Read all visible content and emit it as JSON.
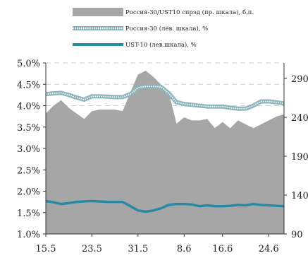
{
  "chart_data": {
    "type": "area",
    "x": [
      "15.5",
      "16.5",
      "17.5",
      "18.5",
      "19.5",
      "22.5",
      "23.5",
      "24.5",
      "25.5",
      "26.5",
      "29.5",
      "30.5",
      "31.5",
      "1.6",
      "2.6",
      "5.6",
      "6.6",
      "7.6",
      "8.6",
      "9.6",
      "13.6",
      "14.6",
      "15.6",
      "16.6",
      "19.6",
      "20.6",
      "21.6",
      "22.6",
      "23.6",
      "24.6",
      "25.6",
      "26.6"
    ],
    "xticks": [
      "15.5",
      "23.5",
      "31.5",
      "8.6",
      "16.6",
      "24.6"
    ],
    "series": [
      {
        "name": "Россия-30/UST10 спрэд (пр. шкала), б.п.",
        "axis": "right",
        "kind": "area",
        "color": "#a6a6a6",
        "values": [
          245,
          255,
          262,
          252,
          245,
          238,
          248,
          250,
          250,
          250,
          248,
          272,
          295,
          300,
          292,
          282,
          272,
          232,
          240,
          236,
          236,
          238,
          226,
          234,
          226,
          236,
          231,
          226,
          231,
          236,
          241,
          244
        ]
      },
      {
        "name": "Россия-30 (лев. шкала), %",
        "axis": "left",
        "kind": "line",
        "color": "#8fb5bd",
        "values": [
          4.27,
          4.29,
          4.3,
          4.25,
          4.19,
          4.14,
          4.22,
          4.22,
          4.21,
          4.2,
          4.2,
          4.27,
          4.42,
          4.45,
          4.45,
          4.44,
          4.29,
          4.08,
          4.04,
          4.02,
          4.0,
          3.98,
          3.98,
          3.98,
          3.95,
          3.93,
          3.93,
          4.0,
          4.1,
          4.1,
          4.08,
          4.05
        ]
      },
      {
        "name": "UST-10 (лев.шкала), %",
        "axis": "left",
        "kind": "line",
        "color": "#2a8aa6",
        "values": [
          1.77,
          1.74,
          1.7,
          1.72,
          1.75,
          1.76,
          1.77,
          1.76,
          1.75,
          1.75,
          1.75,
          1.65,
          1.55,
          1.52,
          1.55,
          1.6,
          1.68,
          1.7,
          1.7,
          1.69,
          1.65,
          1.67,
          1.65,
          1.65,
          1.66,
          1.68,
          1.67,
          1.7,
          1.68,
          1.67,
          1.66,
          1.65
        ]
      }
    ],
    "left_axis": {
      "ticks": [
        "5.0%",
        "4.5%",
        "4.0%",
        "3.5%",
        "3.0%",
        "2.5%",
        "2.0%",
        "1.5%",
        "1.0%"
      ],
      "ylim": [
        1.0,
        5.0
      ]
    },
    "right_axis": {
      "ticks": [
        "290",
        "240",
        "190",
        "140",
        "90"
      ],
      "ylim": [
        90,
        310
      ]
    },
    "legend_position": "top",
    "grid": "horizontal dashed"
  }
}
